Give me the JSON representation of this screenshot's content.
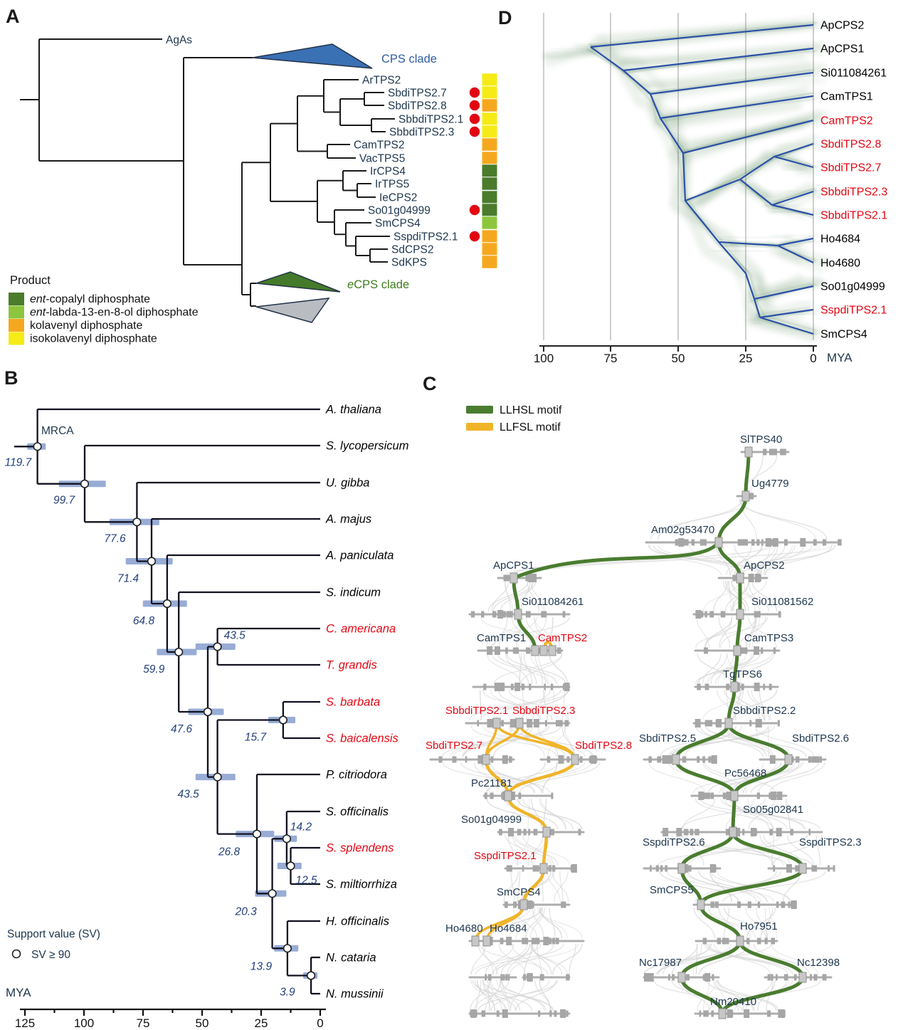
{
  "panelA": {
    "letter": "A",
    "outgroup_label": "AgAs",
    "cps_clade": {
      "label": "CPS clade",
      "fill": "#3a70b4",
      "text_color": "#2f5d9e"
    },
    "ecps_clade": {
      "prefix": "e",
      "label": "CPS clade",
      "fill": "#447a29",
      "text_color": "#3f7d1e"
    },
    "collapsed_outgroup_fill": "#b9bdc2",
    "dot_color": "#e30613",
    "taxa": [
      {
        "name": "ArTPS2",
        "color": "#f6eb16",
        "dot": false
      },
      {
        "name": "SbdiTPS2.7",
        "color": "#f6eb16",
        "dot": true
      },
      {
        "name": "SbdiTPS2.8",
        "color": "#f5a81f",
        "dot": true
      },
      {
        "name": "SbbdiTPS2.1",
        "color": "#f6eb16",
        "dot": true
      },
      {
        "name": "SbbdiTPS2.3",
        "color": "#f6eb16",
        "dot": true
      },
      {
        "name": "CamTPS2",
        "color": "#f5a81f",
        "dot": false
      },
      {
        "name": "VacTPS5",
        "color": "#f5a81f",
        "dot": false
      },
      {
        "name": "IrCPS4",
        "color": "#4a7c2c",
        "dot": false
      },
      {
        "name": "IrTPS5",
        "color": "#4a7c2c",
        "dot": false
      },
      {
        "name": "IeCPS2",
        "color": "#4a7c2c",
        "dot": false
      },
      {
        "name": "So01g04999",
        "color": "#4a7c2c",
        "dot": true
      },
      {
        "name": "SmCPS4",
        "color": "#8cc63e",
        "dot": false
      },
      {
        "name": "SspdiTPS2.1",
        "color": "#f5a81f",
        "dot": true
      },
      {
        "name": "SdCPS2",
        "color": "#f5a81f",
        "dot": false
      },
      {
        "name": "SdKPS",
        "color": "#f5a81f",
        "dot": false
      }
    ],
    "legend": {
      "title": "Product",
      "items": [
        {
          "prefix": "ent",
          "label": "-copalyl diphosphate",
          "color": "#4a7c2c"
        },
        {
          "prefix": "ent",
          "label": "-labda-13-en-8-ol diphosphate",
          "color": "#8cc63e"
        },
        {
          "prefix": "",
          "label": "kolavenyl diphosphate",
          "color": "#f5a81f"
        },
        {
          "prefix": "",
          "label": "isokolavenyl diphosphate",
          "color": "#f6eb16"
        }
      ]
    }
  },
  "panelB": {
    "letter": "B",
    "mrca_label": "MRCA",
    "support_legend": {
      "title": "Support value (SV)",
      "entry": "SV ≥ 90"
    },
    "axis": {
      "label": "MYA",
      "ticks": [
        "125",
        "100",
        "75",
        "50",
        "25",
        "0"
      ]
    },
    "species": [
      {
        "name": "A. thaliana",
        "color": "#000000"
      },
      {
        "name": "S. lycopersicum",
        "color": "#000000"
      },
      {
        "name": "U. gibba",
        "color": "#000000"
      },
      {
        "name": "A. majus",
        "color": "#000000"
      },
      {
        "name": "A. paniculata",
        "color": "#000000"
      },
      {
        "name": "S. indicum",
        "color": "#000000"
      },
      {
        "name": "C. americana",
        "color": "#e30613"
      },
      {
        "name": "T. grandis",
        "color": "#e30613"
      },
      {
        "name": "S. barbata",
        "color": "#e30613"
      },
      {
        "name": "S. baicalensis",
        "color": "#e30613"
      },
      {
        "name": "P. citriodora",
        "color": "#000000"
      },
      {
        "name": "S. officinalis",
        "color": "#000000"
      },
      {
        "name": "S. splendens",
        "color": "#e30613"
      },
      {
        "name": "S. miltiorrhiza",
        "color": "#000000"
      },
      {
        "name": "H. officinalis",
        "color": "#000000"
      },
      {
        "name": "N. cataria",
        "color": "#000000"
      },
      {
        "name": "N. mussinii",
        "color": "#000000"
      }
    ],
    "node_ages": [
      "119.7",
      "99.7",
      "77.6",
      "71.4",
      "64.8",
      "59.9",
      "47.6",
      "43.5",
      "15.7",
      "43.5",
      "26.8",
      "14.2",
      "12.5",
      "20.3",
      "13.9",
      "3.9"
    ]
  },
  "panelC": {
    "letter": "C",
    "legend": [
      {
        "label": "LLHSL motif",
        "color": "#4a7c2f"
      },
      {
        "label": "LLFSL motif",
        "color": "#f0b429"
      }
    ],
    "genes": [
      {
        "text": "SlTPS40",
        "color": "#20384f"
      },
      {
        "text": "Ug4779",
        "color": "#20384f"
      },
      {
        "text": "Am02g53470",
        "color": "#20384f"
      },
      {
        "text": "ApCPS1",
        "color": "#20384f"
      },
      {
        "text": "ApCPS2",
        "color": "#20384f"
      },
      {
        "text": "Si011084261",
        "color": "#20384f"
      },
      {
        "text": "Si011081562",
        "color": "#20384f"
      },
      {
        "text": "CamTPS1",
        "color": "#20384f"
      },
      {
        "text": "CamTPS2",
        "color": "#e30613"
      },
      {
        "text": "CamTPS3",
        "color": "#20384f"
      },
      {
        "text": "TgTPS6",
        "color": "#20384f"
      },
      {
        "text": "SbbdiTPS2.1",
        "color": "#e30613"
      },
      {
        "text": "SbbdiTPS2.3",
        "color": "#e30613"
      },
      {
        "text": "SbbdiTPS2.2",
        "color": "#20384f"
      },
      {
        "text": "SbdiTPS2.7",
        "color": "#e30613"
      },
      {
        "text": "SbdiTPS2.8",
        "color": "#e30613"
      },
      {
        "text": "SbdiTPS2.5",
        "color": "#20384f"
      },
      {
        "text": "SbdiTPS2.6",
        "color": "#20384f"
      },
      {
        "text": "Pc21181",
        "color": "#20384f"
      },
      {
        "text": "Pc56468",
        "color": "#20384f"
      },
      {
        "text": "So01g04999",
        "color": "#20384f"
      },
      {
        "text": "So05g02841",
        "color": "#20384f"
      },
      {
        "text": "SspdiTPS2.1",
        "color": "#e30613"
      },
      {
        "text": "SspdiTPS2.6",
        "color": "#20384f"
      },
      {
        "text": "SspdiTPS2.3",
        "color": "#20384f"
      },
      {
        "text": "SmCPS4",
        "color": "#20384f"
      },
      {
        "text": "SmCPS5",
        "color": "#20384f"
      },
      {
        "text": "Ho4680",
        "color": "#20384f"
      },
      {
        "text": "Ho4684",
        "color": "#20384f"
      },
      {
        "text": "Ho7951",
        "color": "#20384f"
      },
      {
        "text": "Nc17987",
        "color": "#20384f"
      },
      {
        "text": "Nc12398",
        "color": "#20384f"
      },
      {
        "text": "Nm20410",
        "color": "#20384f"
      }
    ]
  },
  "panelD": {
    "letter": "D",
    "axis": {
      "label": "MYA",
      "ticks": [
        "100",
        "75",
        "50",
        "25",
        "0"
      ]
    },
    "consensus_color": "#2b50a8",
    "cloud_color": "#2e6b30",
    "taxa": [
      {
        "name": "ApCPS2",
        "color": "#000000"
      },
      {
        "name": "ApCPS1",
        "color": "#000000"
      },
      {
        "name": "Si011084261",
        "color": "#000000"
      },
      {
        "name": "CamTPS1",
        "color": "#000000"
      },
      {
        "name": "CamTPS2",
        "color": "#e30613"
      },
      {
        "name": "SbdiTPS2.8",
        "color": "#e30613"
      },
      {
        "name": "SbdiTPS2.7",
        "color": "#e30613"
      },
      {
        "name": "SbbdiTPS2.3",
        "color": "#e30613"
      },
      {
        "name": "SbbdiTPS2.1",
        "color": "#e30613"
      },
      {
        "name": "Ho4684",
        "color": "#000000"
      },
      {
        "name": "Ho4680",
        "color": "#000000"
      },
      {
        "name": "So01g04999",
        "color": "#000000"
      },
      {
        "name": "SspdiTPS2.1",
        "color": "#e30613"
      },
      {
        "name": "SmCPS4",
        "color": "#000000"
      }
    ]
  }
}
